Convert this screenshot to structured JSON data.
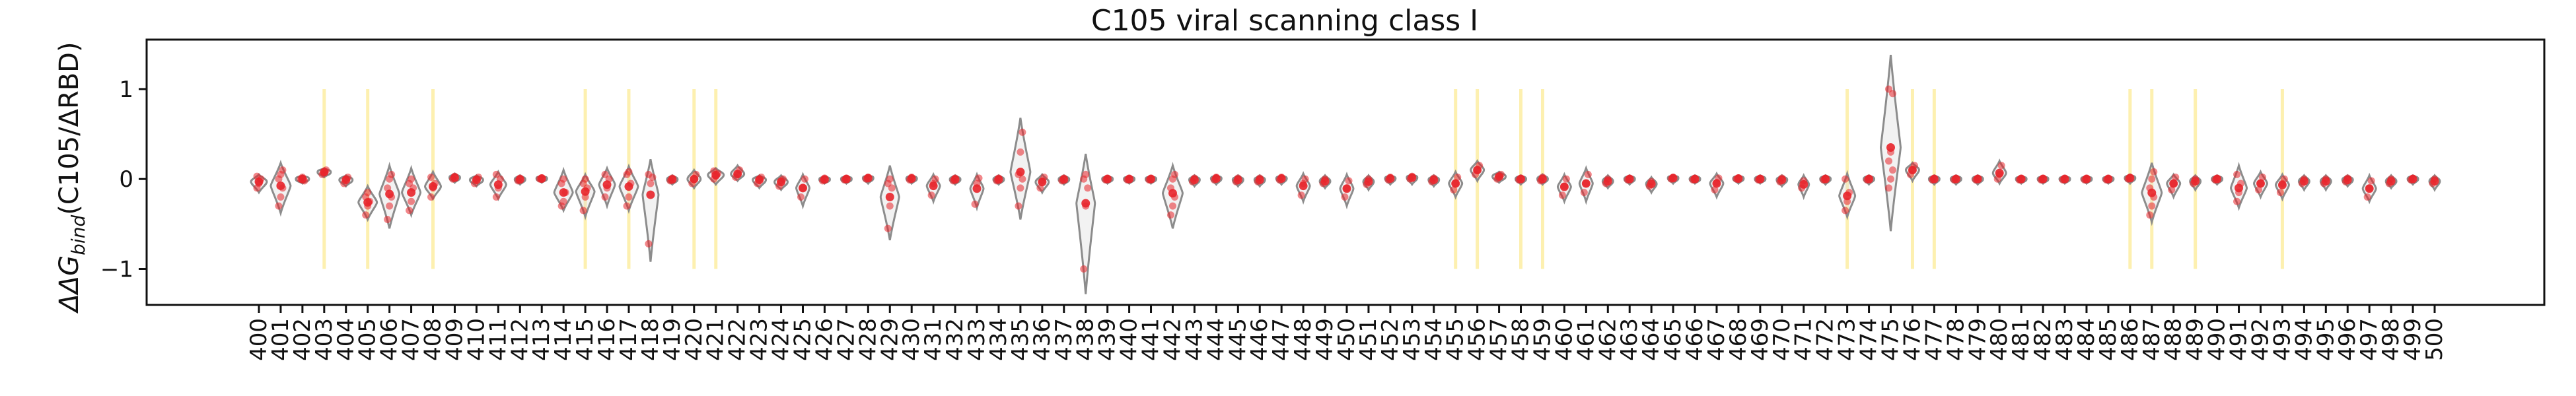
{
  "chart_data": {
    "type": "violin",
    "title": "C105 viral scanning class I",
    "ylabel": "ΔΔG",
    "ylabel_sub": "bind",
    "ylabel_suffix": "(C105/ΔRBD)",
    "xlabel": "",
    "ylim": [
      -1.4,
      1.55
    ],
    "yticks": [
      -1,
      0,
      1
    ],
    "grid": false,
    "categories": [
      "400",
      "401",
      "402",
      "403",
      "404",
      "405",
      "406",
      "407",
      "408",
      "409",
      "410",
      "411",
      "412",
      "413",
      "414",
      "415",
      "416",
      "417",
      "418",
      "419",
      "420",
      "421",
      "422",
      "423",
      "424",
      "425",
      "426",
      "427",
      "428",
      "429",
      "430",
      "431",
      "432",
      "433",
      "434",
      "435",
      "436",
      "437",
      "438",
      "439",
      "440",
      "441",
      "442",
      "443",
      "444",
      "445",
      "446",
      "447",
      "448",
      "449",
      "450",
      "451",
      "452",
      "453",
      "454",
      "455",
      "456",
      "457",
      "458",
      "459",
      "460",
      "461",
      "462",
      "463",
      "464",
      "465",
      "466",
      "467",
      "468",
      "469",
      "470",
      "471",
      "472",
      "473",
      "474",
      "475",
      "476",
      "477",
      "478",
      "479",
      "480",
      "481",
      "482",
      "483",
      "484",
      "485",
      "486",
      "487",
      "488",
      "489",
      "490",
      "491",
      "492",
      "493",
      "494",
      "495",
      "496",
      "497",
      "498",
      "499",
      "500"
    ],
    "highlight_sites": [
      "403",
      "405",
      "408",
      "415",
      "417",
      "420",
      "421",
      "455",
      "456",
      "458",
      "459",
      "473",
      "476",
      "477",
      "486",
      "487",
      "489",
      "493"
    ],
    "highlight_color": "#fdf0b0",
    "violin_color": "#8c8c8c",
    "point_color": "#e8242a",
    "sites": {
      "400": {
        "spread": [
          -0.15,
          0.05
        ],
        "points": [
          -0.1,
          -0.05,
          0,
          0.03
        ]
      },
      "401": {
        "spread": [
          -0.38,
          0.18
        ],
        "points": [
          -0.3,
          -0.2,
          -0.1,
          0,
          0.05,
          0.1
        ]
      },
      "402": {
        "spread": [
          -0.05,
          0.04
        ],
        "points": [
          0,
          0.02,
          -0.02
        ]
      },
      "403": {
        "spread": [
          0.02,
          0.12
        ],
        "points": [
          0.05,
          0.08,
          0.1
        ]
      },
      "404": {
        "spread": [
          -0.08,
          0.04
        ],
        "points": [
          -0.05,
          0,
          0.02
        ]
      },
      "405": {
        "spread": [
          -0.45,
          -0.08
        ],
        "points": [
          -0.4,
          -0.3,
          -0.25,
          -0.2,
          -0.15
        ]
      },
      "406": {
        "spread": [
          -0.55,
          0.15
        ],
        "points": [
          -0.45,
          -0.3,
          -0.2,
          -0.1,
          0,
          0.05
        ]
      },
      "407": {
        "spread": [
          -0.4,
          0.12
        ],
        "points": [
          -0.35,
          -0.25,
          -0.1,
          -0.05,
          0
        ]
      },
      "408": {
        "spread": [
          -0.22,
          0.08
        ],
        "points": [
          -0.2,
          -0.1,
          -0.05,
          0.02
        ]
      },
      "409": {
        "spread": [
          -0.04,
          0.06
        ],
        "points": [
          0,
          0.03
        ]
      },
      "410": {
        "spread": [
          -0.08,
          0.04
        ],
        "points": [
          -0.05,
          0,
          0.02
        ]
      },
      "411": {
        "spread": [
          -0.22,
          0.08
        ],
        "points": [
          -0.2,
          -0.1,
          0,
          0.05
        ]
      },
      "412": {
        "spread": [
          -0.06,
          0.04
        ],
        "points": [
          -0.02,
          0.01
        ]
      },
      "413": {
        "spread": [
          -0.04,
          0.03
        ],
        "points": [
          0,
          0.01
        ]
      },
      "414": {
        "spread": [
          -0.35,
          0.1
        ],
        "points": [
          -0.3,
          -0.25,
          -0.15,
          -0.05,
          0
        ]
      },
      "415": {
        "spread": [
          -0.42,
          0.05
        ],
        "points": [
          -0.35,
          -0.2,
          -0.1,
          -0.05,
          0
        ]
      },
      "416": {
        "spread": [
          -0.3,
          0.12
        ],
        "points": [
          -0.2,
          -0.1,
          0,
          0.05
        ]
      },
      "417": {
        "spread": [
          -0.35,
          0.14
        ],
        "points": [
          -0.3,
          -0.2,
          -0.05,
          0.05,
          0.08
        ]
      },
      "418": {
        "spread": [
          -0.92,
          0.22
        ],
        "points": [
          -0.72,
          -0.05,
          0.02,
          0.05
        ]
      },
      "419": {
        "spread": [
          -0.06,
          0.04
        ],
        "points": [
          -0.02,
          0.01
        ]
      },
      "420": {
        "spread": [
          -0.1,
          0.1
        ],
        "points": [
          -0.05,
          0,
          0.05
        ]
      },
      "421": {
        "spread": [
          -0.06,
          0.12
        ],
        "points": [
          0,
          0.03,
          0.06,
          0.09
        ]
      },
      "422": {
        "spread": [
          -0.02,
          0.15
        ],
        "points": [
          0.02,
          0.05,
          0.1
        ]
      },
      "423": {
        "spread": [
          -0.1,
          0.04
        ],
        "points": [
          -0.05,
          0,
          0.02
        ]
      },
      "424": {
        "spread": [
          -0.12,
          0.04
        ],
        "points": [
          -0.08,
          -0.02,
          0
        ]
      },
      "425": {
        "spread": [
          -0.3,
          0.05
        ],
        "points": [
          -0.2,
          -0.1,
          0
        ]
      },
      "426": {
        "spread": [
          -0.05,
          0.03
        ],
        "points": [
          -0.02,
          0.01
        ]
      },
      "427": {
        "spread": [
          -0.05,
          0.03
        ],
        "points": [
          -0.01,
          0.01
        ]
      },
      "428": {
        "spread": [
          -0.05,
          0.04
        ],
        "points": [
          0,
          0.02
        ]
      },
      "429": {
        "spread": [
          -0.68,
          0.15
        ],
        "points": [
          -0.55,
          -0.3,
          -0.1,
          -0.05,
          0
        ]
      },
      "430": {
        "spread": [
          -0.05,
          0.04
        ],
        "points": [
          -0.01,
          0.02
        ]
      },
      "431": {
        "spread": [
          -0.25,
          0.05
        ],
        "points": [
          -0.18,
          -0.05,
          0
        ]
      },
      "432": {
        "spread": [
          -0.06,
          0.04
        ],
        "points": [
          -0.02,
          0.01
        ]
      },
      "433": {
        "spread": [
          -0.32,
          0.05
        ],
        "points": [
          -0.28,
          -0.05,
          0.01
        ]
      },
      "434": {
        "spread": [
          -0.06,
          0.04
        ],
        "points": [
          -0.02,
          0.01
        ]
      },
      "435": {
        "spread": [
          -0.45,
          0.68
        ],
        "points": [
          -0.3,
          -0.1,
          0,
          0.05,
          0.3,
          0.52
        ]
      },
      "436": {
        "spread": [
          -0.15,
          0.05
        ],
        "points": [
          -0.1,
          -0.02,
          0.02
        ]
      },
      "437": {
        "spread": [
          -0.06,
          0.04
        ],
        "points": [
          -0.02,
          0.01
        ]
      },
      "438": {
        "spread": [
          -1.28,
          0.28
        ],
        "points": [
          -1.0,
          -0.3,
          -0.1,
          0,
          0.05
        ]
      },
      "439": {
        "spread": [
          -0.05,
          0.03
        ],
        "points": [
          -0.01,
          0.01
        ]
      },
      "440": {
        "spread": [
          -0.05,
          0.03
        ],
        "points": [
          -0.01,
          0.01
        ]
      },
      "441": {
        "spread": [
          -0.05,
          0.03
        ],
        "points": [
          -0.01,
          0.01
        ]
      },
      "442": {
        "spread": [
          -0.55,
          0.15
        ],
        "points": [
          -0.4,
          -0.3,
          -0.2,
          -0.1,
          0,
          0.05
        ]
      },
      "443": {
        "spread": [
          -0.08,
          0.04
        ],
        "points": [
          -0.03,
          0.01
        ]
      },
      "444": {
        "spread": [
          -0.06,
          0.04
        ],
        "points": [
          -0.01,
          0.02
        ]
      },
      "445": {
        "spread": [
          -0.08,
          0.04
        ],
        "points": [
          -0.03,
          0.01
        ]
      },
      "446": {
        "spread": [
          -0.08,
          0.04
        ],
        "points": [
          -0.03,
          0.01
        ]
      },
      "447": {
        "spread": [
          -0.06,
          0.04
        ],
        "points": [
          -0.01,
          0.02
        ]
      },
      "448": {
        "spread": [
          -0.25,
          0.06
        ],
        "points": [
          -0.18,
          -0.05,
          0
        ]
      },
      "449": {
        "spread": [
          -0.1,
          0.04
        ],
        "points": [
          -0.05,
          0
        ]
      },
      "450": {
        "spread": [
          -0.3,
          0.05
        ],
        "points": [
          -0.2,
          -0.1,
          -0.02
        ]
      },
      "451": {
        "spread": [
          -0.12,
          0.04
        ],
        "points": [
          -0.06,
          0
        ]
      },
      "452": {
        "spread": [
          -0.06,
          0.04
        ],
        "points": [
          -0.01,
          0.02
        ]
      },
      "453": {
        "spread": [
          -0.06,
          0.05
        ],
        "points": [
          0,
          0.03
        ]
      },
      "454": {
        "spread": [
          -0.08,
          0.04
        ],
        "points": [
          -0.03,
          0.01
        ]
      },
      "455": {
        "spread": [
          -0.2,
          0.08
        ],
        "points": [
          -0.12,
          -0.05,
          0.02
        ]
      },
      "456": {
        "spread": [
          -0.02,
          0.2
        ],
        "points": [
          0.05,
          0.1,
          0.15
        ]
      },
      "457": {
        "spread": [
          -0.04,
          0.08
        ],
        "points": [
          0,
          0.03,
          0.05
        ]
      },
      "458": {
        "spread": [
          -0.06,
          0.04
        ],
        "points": [
          -0.01,
          0.01
        ]
      },
      "459": {
        "spread": [
          -0.06,
          0.05
        ],
        "points": [
          -0.02,
          0.02
        ]
      },
      "460": {
        "spread": [
          -0.25,
          0.05
        ],
        "points": [
          -0.18,
          -0.08,
          0
        ]
      },
      "461": {
        "spread": [
          -0.25,
          0.12
        ],
        "points": [
          -0.15,
          -0.05,
          0.05
        ]
      },
      "462": {
        "spread": [
          -0.1,
          0.04
        ],
        "points": [
          -0.05,
          0
        ]
      },
      "463": {
        "spread": [
          -0.06,
          0.04
        ],
        "points": [
          -0.01,
          0.01
        ]
      },
      "464": {
        "spread": [
          -0.15,
          0.02
        ],
        "points": [
          -0.08,
          -0.03
        ]
      },
      "465": {
        "spread": [
          -0.05,
          0.04
        ],
        "points": [
          0,
          0.02
        ]
      },
      "466": {
        "spread": [
          -0.05,
          0.04
        ],
        "points": [
          -0.01,
          0.01
        ]
      },
      "467": {
        "spread": [
          -0.2,
          0.06
        ],
        "points": [
          -0.12,
          -0.04,
          0.01
        ]
      },
      "468": {
        "spread": [
          -0.05,
          0.04
        ],
        "points": [
          0,
          0.01
        ]
      },
      "469": {
        "spread": [
          -0.05,
          0.04
        ],
        "points": [
          -0.01,
          0.01
        ]
      },
      "470": {
        "spread": [
          -0.08,
          0.04
        ],
        "points": [
          -0.03,
          0.01
        ]
      },
      "471": {
        "spread": [
          -0.2,
          0.04
        ],
        "points": [
          -0.1,
          -0.02
        ]
      },
      "472": {
        "spread": [
          -0.06,
          0.04
        ],
        "points": [
          -0.01,
          0.01
        ]
      },
      "473": {
        "spread": [
          -0.42,
          0.06
        ],
        "points": [
          -0.35,
          -0.25,
          -0.15,
          0
        ]
      },
      "474": {
        "spread": [
          -0.06,
          0.04
        ],
        "points": [
          -0.01,
          0.01
        ]
      },
      "475": {
        "spread": [
          -0.58,
          1.38
        ],
        "points": [
          -0.1,
          0,
          0.1,
          0.2,
          0.3,
          0.95,
          1.0
        ]
      },
      "476": {
        "spread": [
          -0.02,
          0.18
        ],
        "points": [
          0.05,
          0.1,
          0.15
        ]
      },
      "477": {
        "spread": [
          -0.06,
          0.04
        ],
        "points": [
          -0.01,
          0.01
        ]
      },
      "478": {
        "spread": [
          -0.06,
          0.04
        ],
        "points": [
          -0.01,
          0.01
        ]
      },
      "479": {
        "spread": [
          -0.06,
          0.04
        ],
        "points": [
          -0.01,
          0.01
        ]
      },
      "480": {
        "spread": [
          -0.05,
          0.2
        ],
        "points": [
          0,
          0.05,
          0.15
        ]
      },
      "481": {
        "spread": [
          -0.05,
          0.03
        ],
        "points": [
          -0.01,
          0.01
        ]
      },
      "482": {
        "spread": [
          -0.05,
          0.03
        ],
        "points": [
          -0.01,
          0.01
        ]
      },
      "483": {
        "spread": [
          -0.05,
          0.03
        ],
        "points": [
          -0.01,
          0.01
        ]
      },
      "484": {
        "spread": [
          -0.05,
          0.03
        ],
        "points": [
          -0.01,
          0.01
        ]
      },
      "485": {
        "spread": [
          -0.05,
          0.03
        ],
        "points": [
          -0.01,
          0.01
        ]
      },
      "486": {
        "spread": [
          -0.05,
          0.05
        ],
        "points": [
          0,
          0.02
        ]
      },
      "487": {
        "spread": [
          -0.48,
          0.18
        ],
        "points": [
          -0.4,
          -0.3,
          -0.2,
          -0.1,
          0,
          0.08
        ]
      },
      "488": {
        "spread": [
          -0.2,
          0.05
        ],
        "points": [
          -0.12,
          -0.05,
          0.02
        ]
      },
      "489": {
        "spread": [
          -0.12,
          0.04
        ],
        "points": [
          -0.05,
          0
        ]
      },
      "490": {
        "spread": [
          -0.06,
          0.04
        ],
        "points": [
          -0.01,
          0.01
        ]
      },
      "491": {
        "spread": [
          -0.32,
          0.15
        ],
        "points": [
          -0.25,
          -0.15,
          -0.05,
          0.05
        ]
      },
      "492": {
        "spread": [
          -0.2,
          0.08
        ],
        "points": [
          -0.12,
          -0.05,
          0.02
        ]
      },
      "493": {
        "spread": [
          -0.22,
          0.05
        ],
        "points": [
          -0.15,
          -0.05,
          0
        ]
      },
      "494": {
        "spread": [
          -0.12,
          0.04
        ],
        "points": [
          -0.05,
          0
        ]
      },
      "495": {
        "spread": [
          -0.12,
          0.04
        ],
        "points": [
          -0.05,
          0
        ]
      },
      "496": {
        "spread": [
          -0.08,
          0.04
        ],
        "points": [
          -0.03,
          0.01
        ]
      },
      "497": {
        "spread": [
          -0.25,
          0.04
        ],
        "points": [
          -0.2,
          -0.1,
          -0.02
        ]
      },
      "498": {
        "spread": [
          -0.1,
          0.04
        ],
        "points": [
          -0.05,
          0
        ]
      },
      "499": {
        "spread": [
          -0.06,
          0.04
        ],
        "points": [
          -0.01,
          0.01
        ]
      },
      "500": {
        "spread": [
          -0.12,
          0.04
        ],
        "points": [
          -0.05,
          0
        ]
      }
    }
  }
}
